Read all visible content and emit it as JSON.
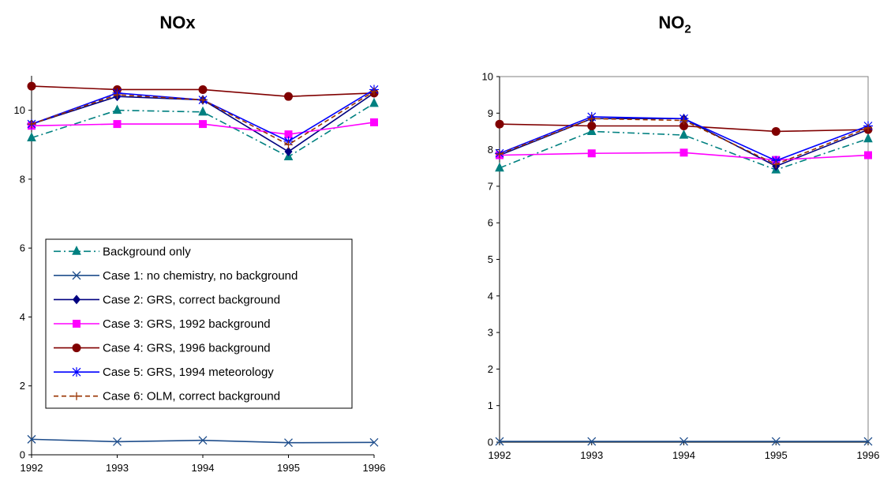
{
  "chart_data": [
    {
      "type": "line",
      "title": "NOx",
      "title_main": "NOx",
      "title_sub": "",
      "categories": [
        "1992",
        "1993",
        "1994",
        "1995",
        "1996"
      ],
      "yticks": [
        "0",
        "2",
        "4",
        "6",
        "8",
        "10"
      ],
      "ylim": [
        0,
        11
      ],
      "grid": false,
      "legend": "inside-lower-left",
      "series": [
        {
          "name": "Background only",
          "color": "#008080",
          "dash": "dashdot",
          "marker": "triangle",
          "values": [
            9.2,
            10.0,
            9.95,
            8.65,
            10.2
          ]
        },
        {
          "name": "Case 1: no chemistry, no background",
          "color": "#1F4E8C",
          "dash": "solid",
          "marker": "x",
          "values": [
            0.45,
            0.38,
            0.42,
            0.35,
            0.36
          ]
        },
        {
          "name": "Case 2: GRS, correct background",
          "color": "#000080",
          "dash": "solid",
          "marker": "diamond",
          "values": [
            9.6,
            10.4,
            10.3,
            8.8,
            10.5
          ]
        },
        {
          "name": "Case 3: GRS, 1992 background",
          "color": "#FF00FF",
          "dash": "solid",
          "marker": "square",
          "values": [
            9.55,
            9.6,
            9.6,
            9.3,
            9.65
          ]
        },
        {
          "name": "Case 4: GRS, 1996 background",
          "color": "#800000",
          "dash": "solid",
          "marker": "circle",
          "values": [
            10.7,
            10.6,
            10.6,
            10.4,
            10.5
          ]
        },
        {
          "name": "Case 5: GRS, 1994 meteorology",
          "color": "#0000FF",
          "dash": "solid",
          "marker": "asterisk",
          "values": [
            9.6,
            10.5,
            10.3,
            9.1,
            10.6
          ]
        },
        {
          "name": "Case 6: OLM, correct background",
          "color": "#993300",
          "dash": "dashed",
          "marker": "plus",
          "values": [
            9.6,
            10.45,
            10.3,
            9.0,
            10.55
          ]
        }
      ]
    },
    {
      "type": "line",
      "title": "NO2",
      "title_main": "NO",
      "title_sub": "2",
      "categories": [
        "1992",
        "1993",
        "1994",
        "1995",
        "1996"
      ],
      "yticks": [
        "0",
        "1",
        "2",
        "3",
        "4",
        "5",
        "6",
        "7",
        "8",
        "9",
        "10"
      ],
      "ylim": [
        0,
        10
      ],
      "grid": false,
      "legend": "none",
      "series": [
        {
          "name": "Background only",
          "color": "#008080",
          "dash": "dashdot",
          "marker": "triangle",
          "values": [
            7.5,
            8.5,
            8.4,
            7.45,
            8.3
          ]
        },
        {
          "name": "Case 1: no chemistry, no background",
          "color": "#1F4E8C",
          "dash": "solid",
          "marker": "x",
          "values": [
            0.02,
            0.02,
            0.02,
            0.02,
            0.02
          ]
        },
        {
          "name": "Case 2: GRS, correct background",
          "color": "#000080",
          "dash": "solid",
          "marker": "diamond",
          "values": [
            7.85,
            8.85,
            8.85,
            7.55,
            8.55
          ]
        },
        {
          "name": "Case 3: GRS, 1992 background",
          "color": "#FF00FF",
          "dash": "solid",
          "marker": "square",
          "values": [
            7.85,
            7.9,
            7.92,
            7.72,
            7.85
          ]
        },
        {
          "name": "Case 4: GRS, 1996 background",
          "color": "#800000",
          "dash": "solid",
          "marker": "circle",
          "values": [
            8.7,
            8.65,
            8.65,
            8.5,
            8.55
          ]
        },
        {
          "name": "Case 5: GRS, 1994 meteorology",
          "color": "#0000FF",
          "dash": "solid",
          "marker": "asterisk",
          "values": [
            7.9,
            8.9,
            8.85,
            7.7,
            8.65
          ]
        },
        {
          "name": "Case 6: OLM, correct background",
          "color": "#993300",
          "dash": "dashed",
          "marker": "plus",
          "values": [
            7.88,
            8.85,
            8.8,
            7.6,
            8.6
          ]
        }
      ]
    }
  ]
}
